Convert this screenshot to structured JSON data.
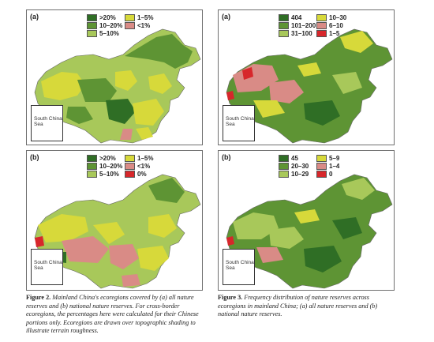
{
  "figure2": {
    "panel_a": {
      "label": "(a)",
      "legend": [
        {
          "label": ">20%",
          "color": "#2f6e25"
        },
        {
          "label": "1–5%",
          "color": "#d7d93a"
        },
        {
          "label": "10–20%",
          "color": "#5e9434"
        },
        {
          "label": "<1%",
          "color": "#d98b86"
        },
        {
          "label": "5–10%",
          "color": "#a8c85a"
        }
      ],
      "inset_label": "South China Sea"
    },
    "panel_b": {
      "label": "(b)",
      "legend": [
        {
          "label": ">20%",
          "color": "#2f6e25"
        },
        {
          "label": "1–5%",
          "color": "#d7d93a"
        },
        {
          "label": "10–20%",
          "color": "#5e9434"
        },
        {
          "label": "<1%",
          "color": "#d98b86"
        },
        {
          "label": "5–10%",
          "color": "#a8c85a"
        },
        {
          "label": "0%",
          "color": "#d7272b"
        }
      ],
      "inset_label": "South China Sea"
    },
    "caption": {
      "number": "Figure 2.",
      "text": "Mainland China's ecoregions covered by (a) all nature reserves and (b) national nature reserves. For cross-border ecoregions, the percentages here were calculated for their Chinese portions only. Ecoregions are drawn over topographic shading to illustrate terrain roughness."
    }
  },
  "figure3": {
    "panel_a": {
      "label": "(a)",
      "legend": [
        {
          "label": "404",
          "color": "#2f6e25"
        },
        {
          "label": "10–30",
          "color": "#d7d93a"
        },
        {
          "label": "101–200",
          "color": "#5e9434"
        },
        {
          "label": "6–10",
          "color": "#d98b86"
        },
        {
          "label": "31–100",
          "color": "#a8c85a"
        },
        {
          "label": "1–5",
          "color": "#d7272b"
        }
      ],
      "inset_label": "South China Sea"
    },
    "panel_b": {
      "label": "(b)",
      "legend": [
        {
          "label": "45",
          "color": "#2f6e25"
        },
        {
          "label": "5–9",
          "color": "#d7d93a"
        },
        {
          "label": "20–30",
          "color": "#5e9434"
        },
        {
          "label": "1–4",
          "color": "#d98b86"
        },
        {
          "label": "10–29",
          "color": "#a8c85a"
        },
        {
          "label": "0",
          "color": "#d7272b"
        }
      ],
      "inset_label": "South China Sea"
    },
    "caption": {
      "number": "Figure 3.",
      "text": "Frequency distribution of nature reserves across ecoregions in mainland China; (a) all nature reserves and (b) national nature reserves."
    }
  }
}
